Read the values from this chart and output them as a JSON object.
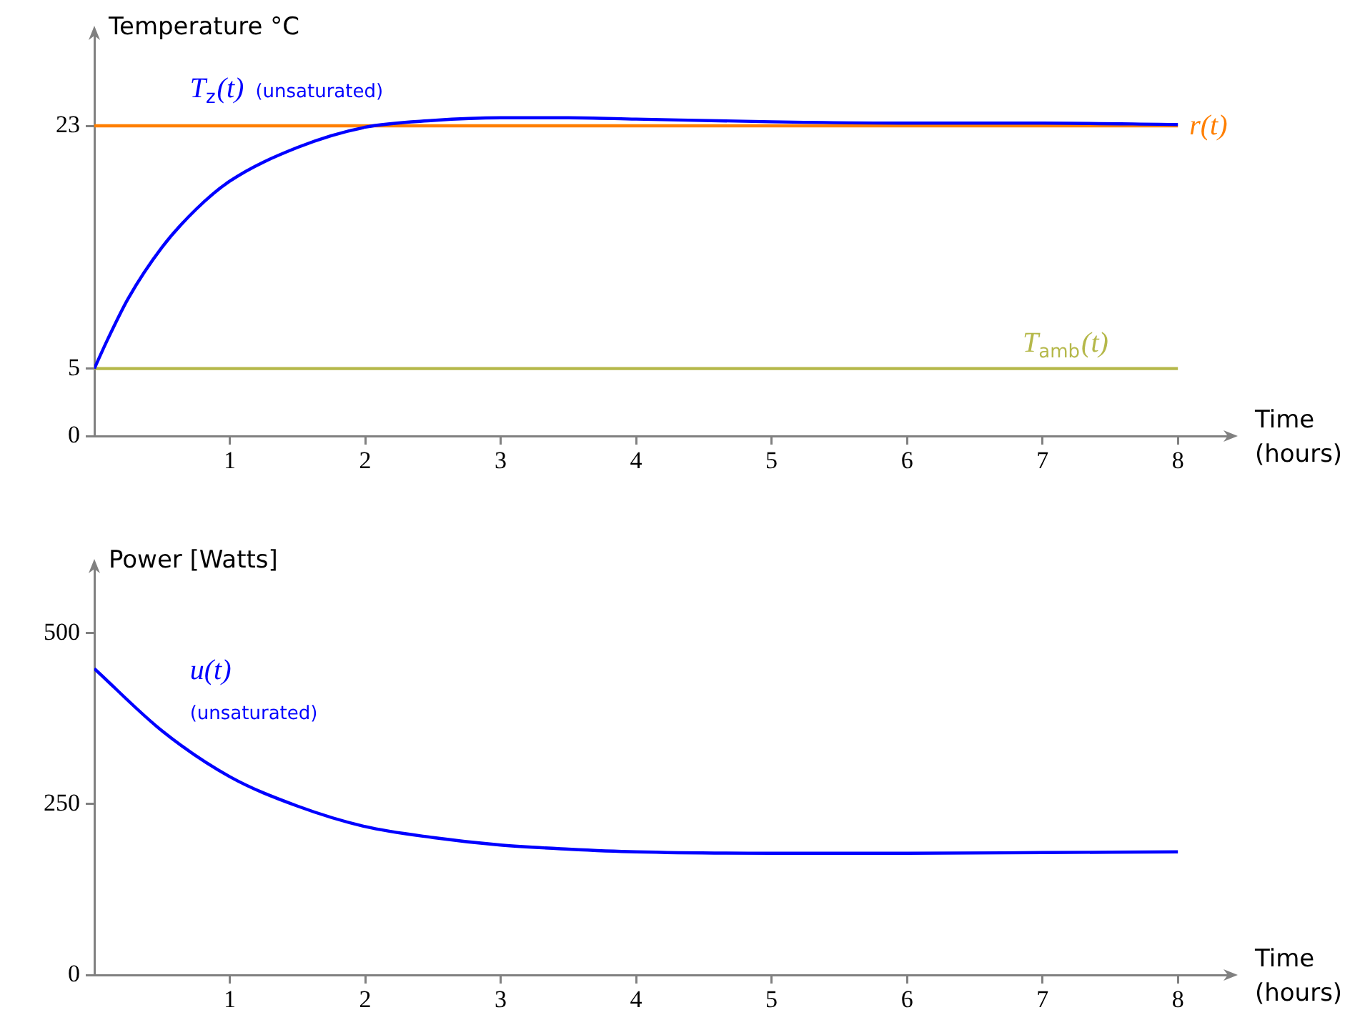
{
  "chart_data": [
    {
      "type": "line",
      "ylabel": "Temperature °C",
      "xlabel": "Time (hours)",
      "xlim": [
        0,
        8.4
      ],
      "xticks": [
        1,
        2,
        3,
        4,
        5,
        6,
        7,
        8
      ],
      "ylim": [
        0,
        30
      ],
      "yticks": [
        0,
        5,
        23
      ],
      "grid": false,
      "legend": false,
      "marker": "none",
      "line_style": "solid",
      "series": [
        {
          "name": "T$_{z}$(t) (unsaturated)",
          "color": "#0000ff",
          "x": [
            0,
            0.1,
            0.25,
            0.5,
            0.75,
            1,
            1.5,
            2,
            2.5,
            3,
            3.5,
            4,
            5,
            6,
            7,
            8
          ],
          "values": [
            5,
            7.2,
            10.2,
            14,
            16.8,
            18.9,
            21.4,
            22.9,
            23.4,
            23.6,
            23.6,
            23.5,
            23.3,
            23.2,
            23.2,
            23.1
          ]
        },
        {
          "name": "r(t)",
          "color": "#ff7f00",
          "x": [
            0,
            8
          ],
          "values": [
            23,
            23
          ]
        },
        {
          "name": "T$_{amb}$(t)",
          "color": "#b5b84a",
          "x": [
            0,
            8
          ],
          "values": [
            5,
            5
          ]
        }
      ]
    },
    {
      "type": "line",
      "ylabel": "Power [Watts]",
      "xlabel": "Time (hours)",
      "xlim": [
        0,
        8.4
      ],
      "xticks": [
        1,
        2,
        3,
        4,
        5,
        6,
        7,
        8
      ],
      "ylim": [
        0,
        600
      ],
      "yticks": [
        0,
        250,
        500
      ],
      "grid": false,
      "legend": false,
      "marker": "none",
      "line_style": "solid",
      "series": [
        {
          "name": "u(t) (unsaturated)",
          "color": "#0000ff",
          "x": [
            0,
            0.5,
            1,
            1.5,
            2,
            2.5,
            3,
            3.5,
            4,
            5,
            6,
            7,
            8
          ],
          "values": [
            448,
            357,
            290,
            247,
            217,
            201,
            190,
            184,
            180,
            178,
            178,
            179,
            180
          ]
        }
      ]
    }
  ]
}
